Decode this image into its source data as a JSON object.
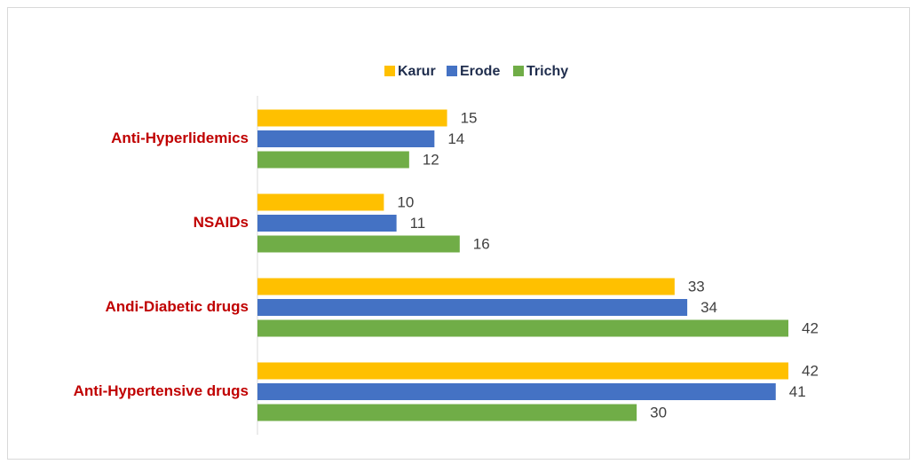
{
  "chart_data": {
    "type": "hbar",
    "categories": [
      "Anti-Hyperlidemics",
      "NSAIDs",
      "Andi-Diabetic drugs",
      "Anti-Hypertensive drugs"
    ],
    "series": [
      {
        "name": "Karur",
        "color": "#ffc000",
        "values": [
          15,
          10,
          33,
          42
        ]
      },
      {
        "name": "Erode",
        "color": "#4472c4",
        "values": [
          14,
          11,
          34,
          41
        ]
      },
      {
        "name": "Trichy",
        "color": "#70ad47",
        "values": [
          12,
          16,
          42,
          30
        ]
      }
    ],
    "xlim": [
      0,
      42
    ],
    "legend": "top"
  }
}
